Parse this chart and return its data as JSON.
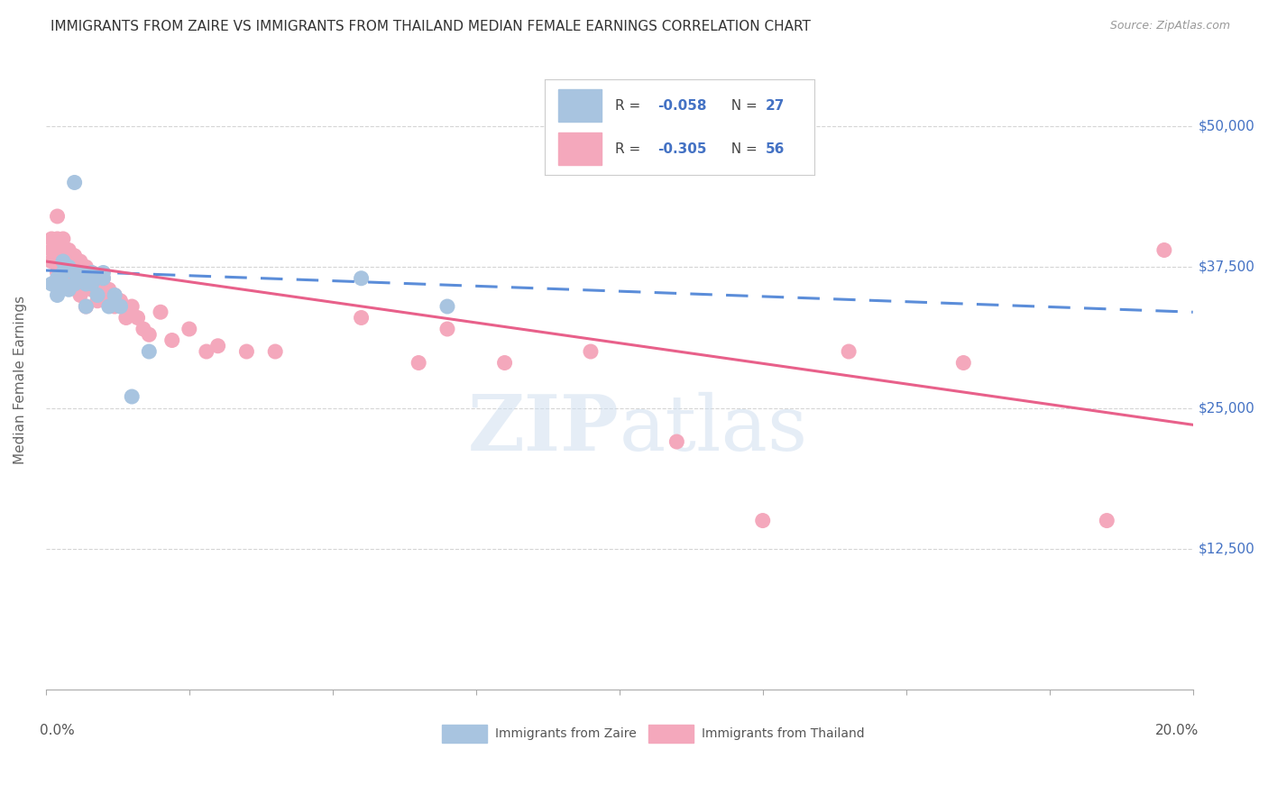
{
  "title": "IMMIGRANTS FROM ZAIRE VS IMMIGRANTS FROM THAILAND MEDIAN FEMALE EARNINGS CORRELATION CHART",
  "source": "Source: ZipAtlas.com",
  "ylabel": "Median Female Earnings",
  "ytick_labels": [
    "$12,500",
    "$25,000",
    "$37,500",
    "$50,000"
  ],
  "ytick_values": [
    12500,
    25000,
    37500,
    50000
  ],
  "zaire_color": "#a8c4e0",
  "thailand_color": "#f4a8bc",
  "zaire_line_color": "#5b8dd9",
  "thailand_line_color": "#e8608a",
  "legend_text_color": "#4472c4",
  "watermark_color": "#d0dff0",
  "xmin": 0.0,
  "xmax": 0.2,
  "ymin": 0,
  "ymax": 55000,
  "zaire_scatter_x": [
    0.001,
    0.002,
    0.002,
    0.003,
    0.003,
    0.003,
    0.004,
    0.004,
    0.005,
    0.005,
    0.005,
    0.006,
    0.006,
    0.007,
    0.007,
    0.008,
    0.008,
    0.009,
    0.01,
    0.01,
    0.011,
    0.012,
    0.013,
    0.015,
    0.018,
    0.055,
    0.07
  ],
  "zaire_scatter_y": [
    36000,
    35000,
    36500,
    38000,
    37000,
    36000,
    37500,
    35500,
    45000,
    37000,
    36000,
    37000,
    36500,
    34000,
    36000,
    37000,
    36000,
    35000,
    37000,
    36500,
    34000,
    35000,
    34000,
    26000,
    30000,
    36500,
    34000
  ],
  "thailand_scatter_x": [
    0.001,
    0.001,
    0.001,
    0.002,
    0.002,
    0.002,
    0.002,
    0.003,
    0.003,
    0.003,
    0.003,
    0.004,
    0.004,
    0.004,
    0.005,
    0.005,
    0.005,
    0.006,
    0.006,
    0.006,
    0.007,
    0.007,
    0.007,
    0.008,
    0.008,
    0.009,
    0.009,
    0.01,
    0.01,
    0.011,
    0.012,
    0.012,
    0.013,
    0.014,
    0.015,
    0.016,
    0.017,
    0.018,
    0.02,
    0.022,
    0.025,
    0.028,
    0.03,
    0.035,
    0.04,
    0.055,
    0.065,
    0.07,
    0.08,
    0.095,
    0.11,
    0.125,
    0.14,
    0.16,
    0.185,
    0.195
  ],
  "thailand_scatter_y": [
    40000,
    39000,
    38000,
    42000,
    40000,
    38500,
    37000,
    40000,
    39000,
    37500,
    36500,
    39000,
    38000,
    37000,
    38500,
    37500,
    36000,
    38000,
    37000,
    35000,
    37500,
    36500,
    34000,
    37000,
    35500,
    36000,
    34500,
    36500,
    35000,
    35500,
    35000,
    34000,
    34500,
    33000,
    34000,
    33000,
    32000,
    31500,
    33500,
    31000,
    32000,
    30000,
    30500,
    30000,
    30000,
    33000,
    29000,
    32000,
    29000,
    30000,
    22000,
    15000,
    30000,
    29000,
    15000,
    39000
  ],
  "zaire_trendline_x": [
    0.0,
    0.2
  ],
  "zaire_trendline_y": [
    37200,
    33500
  ],
  "thailand_trendline_x": [
    0.0,
    0.2
  ],
  "thailand_trendline_y": [
    38000,
    23500
  ]
}
